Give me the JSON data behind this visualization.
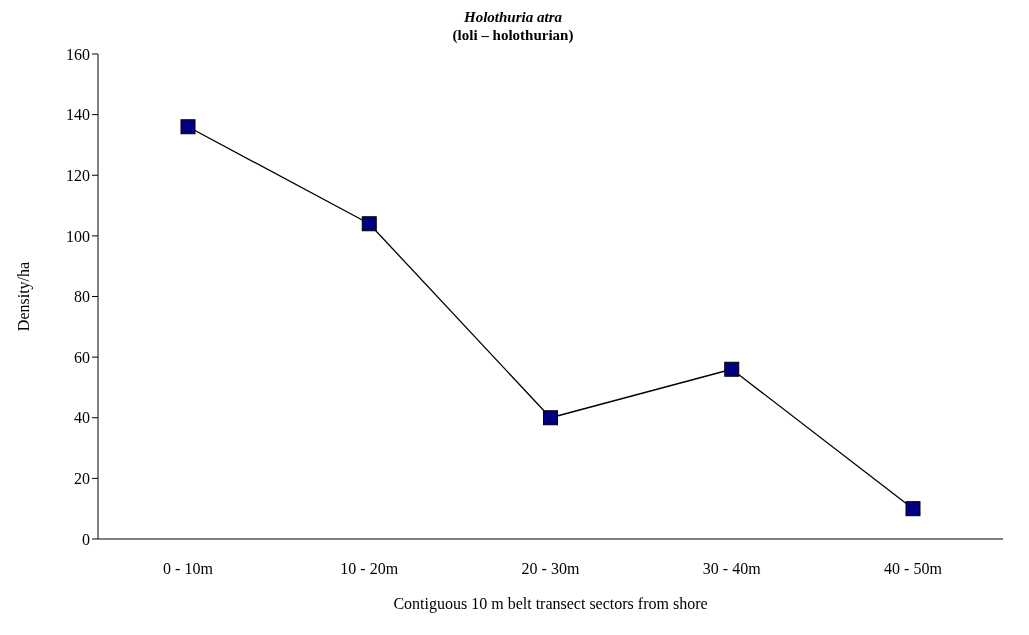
{
  "chart_data": {
    "type": "line",
    "title": "Holothuria atra",
    "subtitle": "(loli – holothurian)",
    "xlabel": "Contiguous 10 m belt transect sectors from shore",
    "ylabel": "Density/ha",
    "categories": [
      "0 - 10m",
      "10 - 20m",
      "20 - 30m",
      "30 - 40m",
      "40 - 50m"
    ],
    "series": [
      {
        "color": "#000080",
        "values": [
          136,
          104,
          40,
          56,
          10
        ]
      }
    ],
    "ylim": [
      0,
      160
    ],
    "yticks": [
      0,
      20,
      40,
      60,
      80,
      100,
      120,
      140,
      160
    ],
    "grid": false,
    "legend": false,
    "marker": "square",
    "line_style": "solid"
  }
}
